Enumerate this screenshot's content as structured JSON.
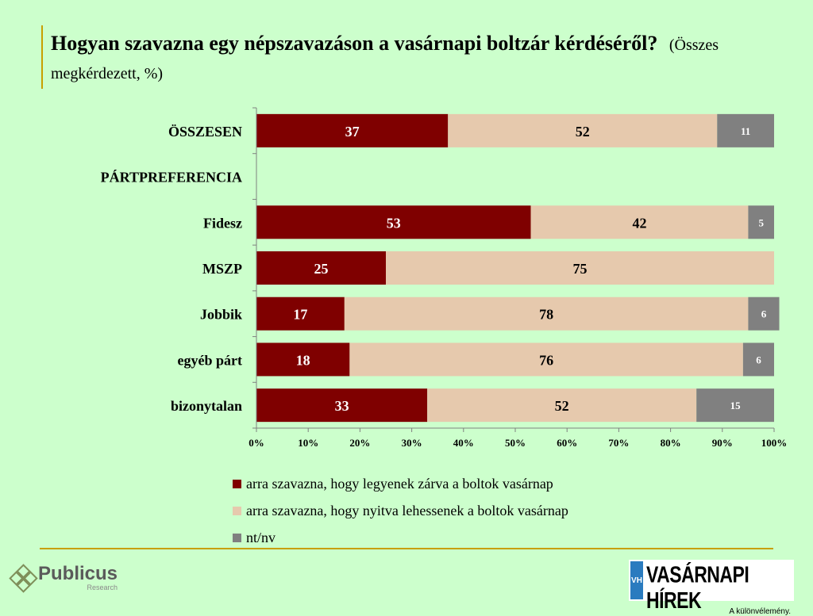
{
  "title": "Hogyan szavazna egy népszavazáson a vasárnapi boltzár kérdéséről?",
  "subtitle": "(Összes megkérdezett, %)",
  "chart_data": {
    "type": "bar",
    "orientation": "horizontal",
    "stacked": true,
    "categories": [
      "ÖSSZESEN",
      "PÁRTPREFERENCIA",
      "Fidesz",
      "MSZP",
      "Jobbik",
      "egyéb párt",
      "bizonytalan"
    ],
    "series": [
      {
        "name": "arra szavazna, hogy legyenek zárva a boltok vasárnap",
        "color": "#7f0000",
        "values": [
          37,
          null,
          53,
          25,
          17,
          18,
          33
        ]
      },
      {
        "name": "arra szavazna, hogy nyitva lehessenek a boltok vasárnap",
        "color": "#e6c9ad",
        "values": [
          52,
          null,
          42,
          75,
          78,
          76,
          52
        ]
      },
      {
        "name": "nt/nv",
        "color": "#808080",
        "values": [
          11,
          null,
          5,
          0,
          6,
          6,
          15
        ]
      }
    ],
    "xlim": [
      0,
      100
    ],
    "xticks": [
      "0%",
      "10%",
      "20%",
      "30%",
      "40%",
      "50%",
      "60%",
      "70%",
      "80%",
      "90%",
      "100%"
    ],
    "legend": "bottom",
    "grid": false
  },
  "logos": {
    "publicus": {
      "name": "Publicus",
      "sub": "Research"
    },
    "vh": {
      "mark": "VH",
      "name": "VASÁRNAPI HÍREK",
      "tagline": "A különvélemény."
    }
  }
}
